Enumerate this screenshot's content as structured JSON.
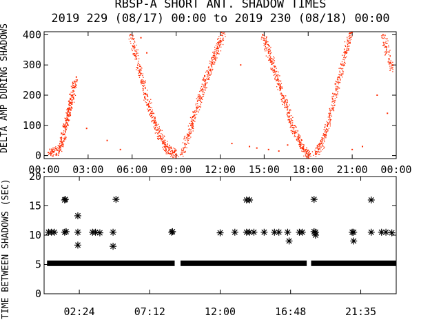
{
  "chart_data": [
    {
      "type": "scatter",
      "title_line1": "RBSP-A SHORT ANT. SHADOW TIMES",
      "title_line2": "2019 229 (08/17) 00:00 to 2019 230 (08/18) 00:00",
      "ylabel": "DELTA AMP DURING SHADOWS",
      "xlim_hours": [
        0,
        24
      ],
      "ylim": [
        -10,
        410
      ],
      "x_tick_labels": [
        "00:00",
        "03:00",
        "06:00",
        "09:00",
        "12:00",
        "15:00",
        "18:00",
        "21:00",
        "00:00"
      ],
      "x_tick_hours": [
        0,
        3,
        6,
        9,
        12,
        15,
        18,
        21,
        24
      ],
      "y_tick_values": [
        0,
        100,
        200,
        300,
        400
      ],
      "y_tick_labels": [
        "0",
        "100",
        "200",
        "300",
        "400"
      ],
      "point_color": "#ff2a00",
      "series": [
        {
          "role": "rising",
          "points": [
            [
              0.3,
              10
            ],
            [
              0.6,
              12
            ],
            [
              0.9,
              18
            ],
            [
              1.1,
              28
            ],
            [
              1.2,
              45
            ],
            [
              1.3,
              70
            ],
            [
              1.4,
              95
            ],
            [
              1.5,
              115
            ],
            [
              1.6,
              135
            ],
            [
              1.7,
              155
            ],
            [
              1.8,
              175
            ],
            [
              1.9,
              200
            ],
            [
              2.0,
              225
            ],
            [
              2.1,
              245
            ]
          ]
        },
        {
          "role": "falling",
          "points": [
            [
              5.9,
              400
            ],
            [
              6.1,
              360
            ],
            [
              6.3,
              320
            ],
            [
              6.5,
              280
            ],
            [
              6.7,
              240
            ],
            [
              6.9,
              205
            ],
            [
              7.1,
              170
            ],
            [
              7.3,
              140
            ],
            [
              7.5,
              110
            ],
            [
              7.7,
              85
            ],
            [
              7.9,
              65
            ],
            [
              8.1,
              45
            ],
            [
              8.3,
              30
            ],
            [
              8.5,
              18
            ],
            [
              8.8,
              10
            ],
            [
              9.0,
              5
            ]
          ]
        },
        {
          "role": "rising",
          "points": [
            [
              9.4,
              5
            ],
            [
              9.6,
              40
            ],
            [
              9.8,
              70
            ],
            [
              10.0,
              100
            ],
            [
              10.2,
              130
            ],
            [
              10.4,
              160
            ],
            [
              10.6,
              190
            ],
            [
              10.8,
              220
            ],
            [
              11.0,
              250
            ],
            [
              11.2,
              275
            ],
            [
              11.4,
              300
            ],
            [
              11.6,
              330
            ],
            [
              11.8,
              355
            ],
            [
              12.0,
              380
            ],
            [
              12.2,
              405
            ]
          ]
        },
        {
          "role": "falling",
          "points": [
            [
              14.9,
              400
            ],
            [
              15.1,
              370
            ],
            [
              15.3,
              340
            ],
            [
              15.5,
              310
            ],
            [
              15.7,
              280
            ],
            [
              15.9,
              250
            ],
            [
              16.1,
              220
            ],
            [
              16.3,
              190
            ],
            [
              16.5,
              160
            ],
            [
              16.7,
              130
            ],
            [
              16.9,
              100
            ],
            [
              17.1,
              75
            ],
            [
              17.3,
              55
            ],
            [
              17.5,
              35
            ],
            [
              17.7,
              20
            ],
            [
              17.9,
              8
            ],
            [
              18.1,
              3
            ]
          ]
        },
        {
          "role": "rising",
          "points": [
            [
              18.5,
              5
            ],
            [
              18.7,
              20
            ],
            [
              18.9,
              40
            ],
            [
              19.1,
              70
            ],
            [
              19.3,
              100
            ],
            [
              19.5,
              140
            ],
            [
              19.7,
              180
            ],
            [
              19.9,
              220
            ],
            [
              20.1,
              260
            ],
            [
              20.3,
              300
            ],
            [
              20.5,
              340
            ],
            [
              20.7,
              380
            ],
            [
              20.9,
              405
            ]
          ]
        },
        {
          "role": "falling",
          "points": [
            [
              23.1,
              400
            ],
            [
              23.3,
              360
            ],
            [
              23.5,
              320
            ],
            [
              23.7,
              290
            ]
          ]
        },
        {
          "role": "isolated",
          "points": [
            [
              2.2,
              260
            ],
            [
              2.9,
              90
            ],
            [
              4.3,
              50
            ],
            [
              5.2,
              20
            ],
            [
              6.6,
              390
            ],
            [
              7.0,
              340
            ],
            [
              12.8,
              40
            ],
            [
              13.4,
              300
            ],
            [
              14.0,
              30
            ],
            [
              14.5,
              25
            ],
            [
              15.3,
              20
            ],
            [
              16.0,
              15
            ],
            [
              16.6,
              35
            ],
            [
              17.6,
              25
            ],
            [
              21.0,
              20
            ],
            [
              21.7,
              30
            ],
            [
              22.7,
              200
            ],
            [
              23.4,
              140
            ]
          ]
        }
      ]
    },
    {
      "type": "scatter",
      "ylabel": "TIME BETWEEN SHADOWS (SEC)",
      "xlim_hours": [
        0,
        24
      ],
      "ylim": [
        0,
        20
      ],
      "x_tick_labels": [
        "02:24",
        "07:12",
        "12:00",
        "16:48",
        "21:35"
      ],
      "x_tick_hours": [
        2.4,
        7.2,
        12.0,
        16.8,
        21.583
      ],
      "y_tick_values": [
        0,
        5,
        10,
        15,
        20
      ],
      "y_tick_labels": [
        "0",
        "5",
        "10",
        "15",
        "20"
      ],
      "marker": "*",
      "baseline": {
        "value": 5.2,
        "segments": [
          [
            0.2,
            8.9
          ],
          [
            9.3,
            17.9
          ],
          [
            18.2,
            24.0
          ]
        ]
      },
      "points": [
        [
          0.3,
          10.5
        ],
        [
          0.5,
          10.5
        ],
        [
          0.7,
          10.5
        ],
        [
          1.4,
          16.0
        ],
        [
          1.45,
          16.1
        ],
        [
          1.4,
          10.5
        ],
        [
          1.5,
          10.6
        ],
        [
          2.3,
          13.3
        ],
        [
          2.3,
          10.5
        ],
        [
          2.3,
          8.3
        ],
        [
          3.3,
          10.5
        ],
        [
          3.5,
          10.5
        ],
        [
          3.8,
          10.4
        ],
        [
          4.9,
          16.1
        ],
        [
          4.7,
          10.5
        ],
        [
          4.7,
          8.1
        ],
        [
          8.7,
          10.5
        ],
        [
          8.75,
          10.6
        ],
        [
          12.0,
          10.4
        ],
        [
          13.0,
          10.5
        ],
        [
          13.8,
          16.0
        ],
        [
          14.0,
          16.0
        ],
        [
          13.8,
          10.5
        ],
        [
          14.0,
          10.5
        ],
        [
          14.3,
          10.5
        ],
        [
          15.0,
          10.5
        ],
        [
          15.7,
          10.5
        ],
        [
          16.0,
          10.5
        ],
        [
          16.6,
          10.5
        ],
        [
          16.7,
          9.0
        ],
        [
          17.4,
          10.5
        ],
        [
          17.6,
          10.5
        ],
        [
          18.4,
          16.1
        ],
        [
          18.4,
          10.6
        ],
        [
          18.5,
          10.5
        ],
        [
          18.5,
          10.0
        ],
        [
          21.0,
          10.5
        ],
        [
          21.1,
          10.5
        ],
        [
          21.1,
          9.0
        ],
        [
          22.3,
          16.0
        ],
        [
          22.3,
          10.5
        ],
        [
          23.0,
          10.5
        ],
        [
          23.3,
          10.5
        ],
        [
          23.7,
          10.4
        ]
      ]
    }
  ]
}
